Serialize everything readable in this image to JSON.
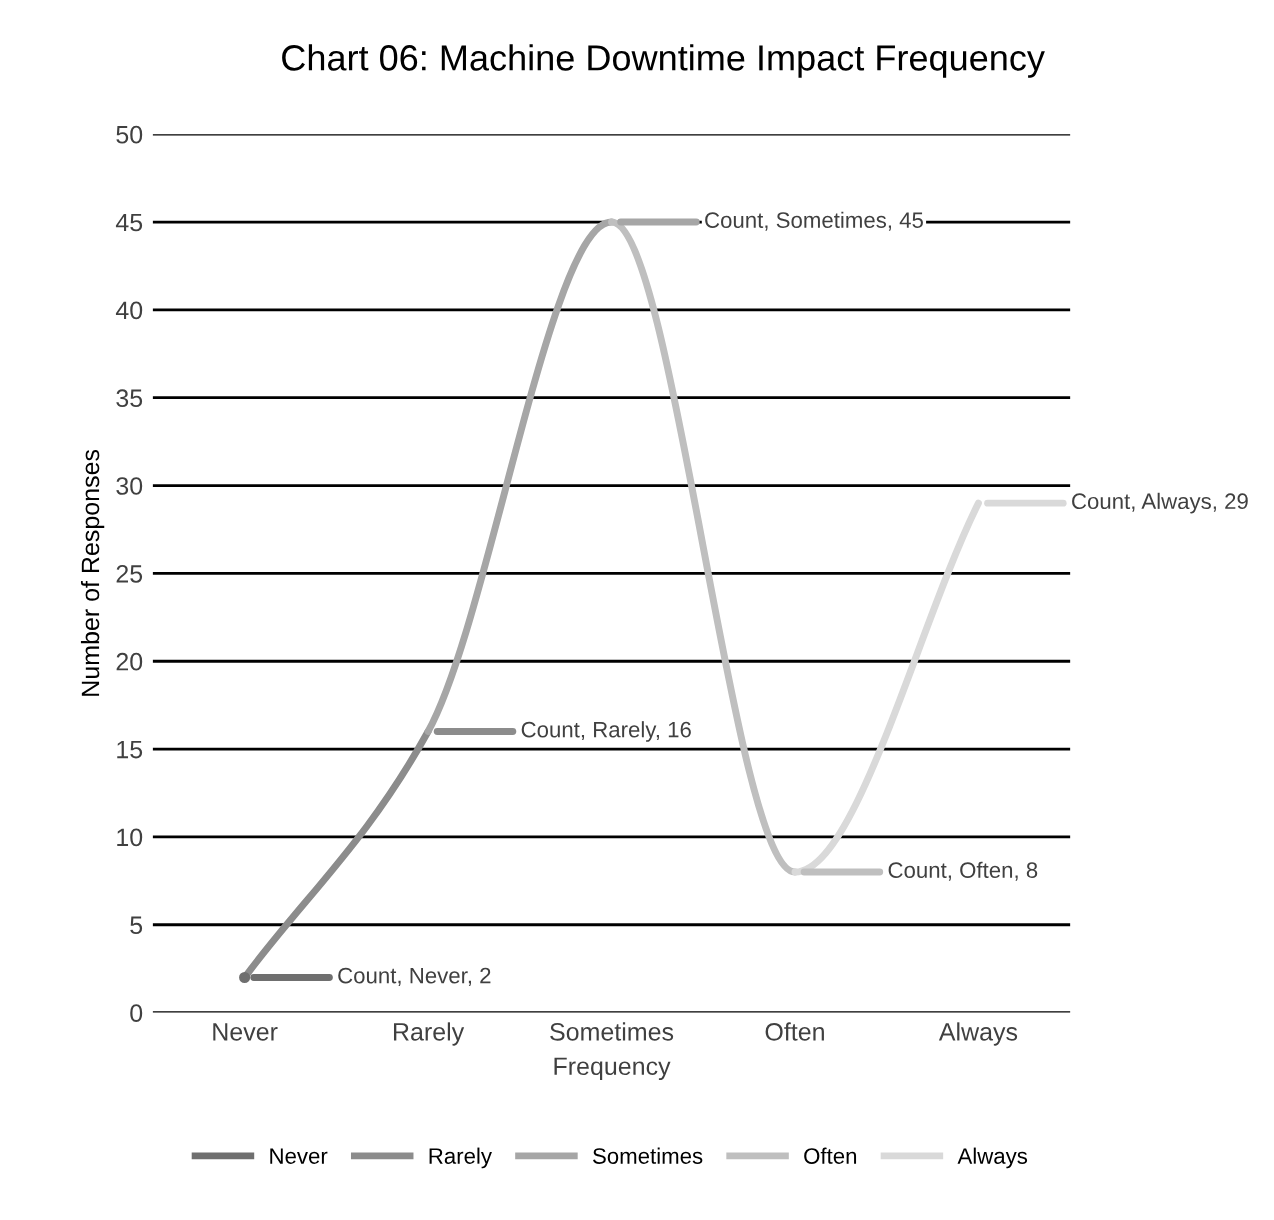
{
  "chart_data": {
    "type": "line",
    "title": "Chart 06: Machine Downtime Impact Frequency",
    "xlabel": "Frequency",
    "ylabel": "Number of Responses",
    "categories": [
      "Never",
      "Rarely",
      "Sometimes",
      "Often",
      "Always"
    ],
    "series": [
      {
        "name": "Never",
        "color": "#6f6f6f",
        "marker": "circle",
        "values": [
          2,
          null,
          null,
          null,
          null
        ],
        "value_labels": [
          "Count, Never, 2",
          null,
          null,
          null,
          null
        ]
      },
      {
        "name": "Rarely",
        "color": "#8c8c8c",
        "values": [
          2,
          16,
          null,
          null,
          null
        ],
        "value_labels": [
          null,
          "Count, Rarely, 16",
          null,
          null,
          null
        ]
      },
      {
        "name": "Sometimes",
        "color": "#a6a6a6",
        "values": [
          null,
          16,
          45,
          null,
          null
        ],
        "value_labels": [
          null,
          null,
          "Count, Sometimes, 45",
          null,
          null
        ]
      },
      {
        "name": "Often",
        "color": "#bfbfbf",
        "values": [
          null,
          null,
          45,
          8,
          null
        ],
        "value_labels": [
          null,
          null,
          null,
          "Count, Often, 8",
          null
        ]
      },
      {
        "name": "Always",
        "color": "#d9d9d9",
        "values": [
          null,
          null,
          null,
          8,
          29
        ],
        "value_labels": [
          null,
          null,
          null,
          null,
          "Count, Always, 29"
        ]
      }
    ],
    "ylim": [
      0,
      50
    ],
    "yticks": [
      0,
      5,
      10,
      15,
      20,
      25,
      30,
      35,
      40,
      45,
      50
    ],
    "grid": "y",
    "legend": "bottom",
    "marker": "none",
    "line_style": "solid"
  }
}
